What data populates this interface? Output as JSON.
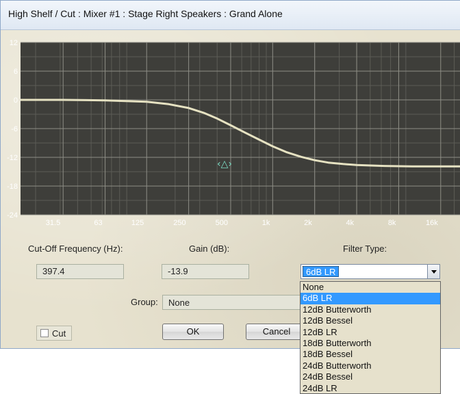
{
  "window": {
    "title": "High Shelf / Cut : Mixer #1 : Stage Right Speakers : Grand Alone"
  },
  "chart_data": {
    "type": "line",
    "title": "",
    "xlabel": "",
    "ylabel": "",
    "x_scale": "log",
    "xlim": [
      15.6,
      22000
    ],
    "ylim": [
      -24,
      12
    ],
    "y_ticks": [
      "12",
      "6",
      "0",
      "-6",
      "-12",
      "-18",
      "-24"
    ],
    "x_ticks": [
      {
        "f": 31.5,
        "label": "31.5"
      },
      {
        "f": 63,
        "label": "63"
      },
      {
        "f": 125,
        "label": "125"
      },
      {
        "f": 250,
        "label": "250"
      },
      {
        "f": 500,
        "label": "500"
      },
      {
        "f": 1000,
        "label": "1k"
      },
      {
        "f": 2000,
        "label": "2k"
      },
      {
        "f": 4000,
        "label": "4k"
      },
      {
        "f": 8000,
        "label": "8k"
      },
      {
        "f": 16000,
        "label": "16k"
      }
    ],
    "grid": true,
    "series": [
      {
        "x": [
          15.6,
          31.5,
          63,
          125,
          180,
          250,
          320,
          400,
          500,
          630,
          800,
          1000,
          1250,
          1600,
          2000,
          2500,
          3200,
          4000,
          6300,
          10000,
          22000
        ],
        "values": [
          0,
          0,
          -0.1,
          -0.4,
          -0.9,
          -1.7,
          -2.7,
          -3.9,
          -5.3,
          -6.8,
          -8.3,
          -9.7,
          -10.9,
          -11.9,
          -12.6,
          -13.1,
          -13.4,
          -13.6,
          -13.8,
          -13.9,
          -13.9
        ]
      }
    ],
    "handle": {
      "f": 397.4,
      "gain": -13.9,
      "glyph": "‹△›"
    }
  },
  "controls": {
    "cutoff_label": "Cut-Off Frequency (Hz):",
    "cutoff_value": "397.4",
    "gain_label": "Gain (dB):",
    "gain_value": "-13.9",
    "filter_label": "Filter Type:",
    "filter_value": "6dB LR",
    "group_label": "Group:",
    "group_value": "None",
    "cut_label": "Cut",
    "cut_checked": false
  },
  "buttons": {
    "ok": "OK",
    "cancel": "Cancel"
  },
  "filter_options": [
    "None",
    "6dB LR",
    "12dB Butterworth",
    "12dB Bessel",
    "12dB LR",
    "18dB Butterworth",
    "18dB Bessel",
    "24dB Butterworth",
    "24dB Bessel",
    "24dB LR"
  ],
  "selected_filter_index": 1
}
